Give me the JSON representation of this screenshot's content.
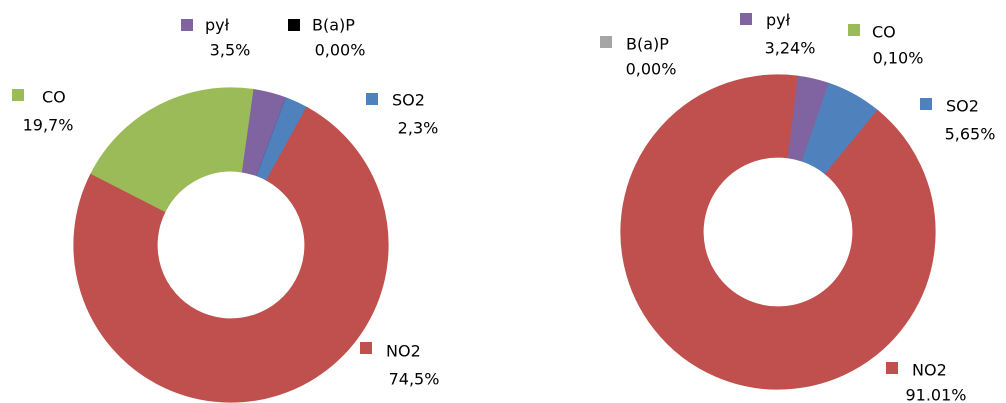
{
  "chart_data": [
    {
      "type": "pie",
      "categories": [
        "pył",
        "B(a)P",
        "SO2",
        "NO2",
        "CO"
      ],
      "values": [
        3.5,
        0.0,
        2.3,
        74.5,
        19.7
      ],
      "value_labels": [
        "3,5%",
        "0,00%",
        "2,3%",
        "74,5%",
        "19,7%"
      ],
      "colors": [
        "#8064a2",
        "#000000",
        "#4f81bd",
        "#c0504d",
        "#9bbb59"
      ]
    },
    {
      "type": "pie",
      "categories": [
        "B(a)P",
        "CO",
        "pył",
        "SO2",
        "NO2"
      ],
      "values": [
        0.0,
        0.1,
        3.24,
        5.65,
        91.01
      ],
      "value_labels": [
        "0,00%",
        "0,10%",
        "3,24%",
        "5,65%",
        "91.01%"
      ],
      "colors": [
        "#a5a5a5",
        "#9bbb59",
        "#8064a2",
        "#4f81bd",
        "#c0504d"
      ]
    }
  ]
}
